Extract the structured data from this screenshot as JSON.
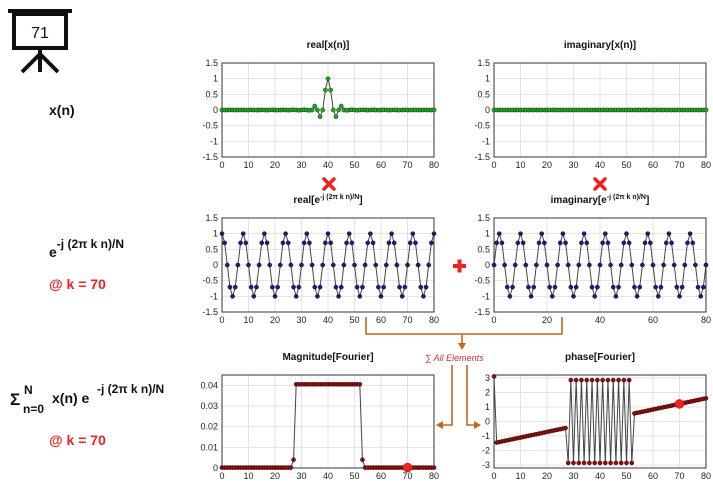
{
  "badge": {
    "number": "71",
    "icon": "presentation-board-icon"
  },
  "left_labels": {
    "xn": "x(n)",
    "kernel_base": "e",
    "kernel_exp": "-j (2π k n)/N",
    "k_note": "@ k = 70",
    "sum_sigma": "Σ",
    "sum_upper": "N",
    "sum_lower": "n=0",
    "sum_body": "x(n) e",
    "sum_exp": "-j (2π k n)/N",
    "k_note2": "@ k = 70"
  },
  "operators": {
    "multiply_icon": "red-x-cross-icon",
    "plus_icon": "red-plus-icon",
    "sum_note": "∑ All Elements"
  },
  "colors": {
    "green": "#22aa22",
    "navy": "#1a1f7a",
    "darkred": "#8b0f0f",
    "accent_red": "#ee2222",
    "orange": "#c8651a",
    "line": "#444444"
  },
  "chart_data": [
    {
      "id": "real_x",
      "type": "line",
      "title": "real[x(n)]",
      "title_sup": "",
      "title_tail": "",
      "xlim": [
        0,
        80
      ],
      "ylim": [
        -1.5,
        1.5
      ],
      "xticks": [
        "0",
        "10",
        "20",
        "30",
        "40",
        "50",
        "60",
        "70",
        "80"
      ],
      "yticks": [
        "1.5",
        "1",
        "0.5",
        "0",
        "-0.5",
        "-1",
        "-1.5"
      ],
      "marker": "green",
      "generator": "sinc"
    },
    {
      "id": "imag_x",
      "type": "line",
      "title": "imaginary[x(n)]",
      "title_sup": "",
      "title_tail": "",
      "xlim": [
        0,
        80
      ],
      "ylim": [
        -1.5,
        1.5
      ],
      "xticks": [
        "0",
        "10",
        "20",
        "30",
        "40",
        "50",
        "60",
        "70",
        "80"
      ],
      "yticks": [
        "1.5",
        "1",
        "0.5",
        "0",
        "-0.5",
        "-1",
        "-1.5"
      ],
      "marker": "green",
      "generator": "zero"
    },
    {
      "id": "real_kernel",
      "type": "line",
      "title": "real[e",
      "title_sup": "-j (2π k n)/N",
      "title_tail": "]",
      "xlim": [
        0,
        80
      ],
      "ylim": [
        -1.5,
        1.5
      ],
      "xticks": [
        "0",
        "10",
        "20",
        "30",
        "40",
        "50",
        "60",
        "70",
        "80"
      ],
      "yticks": [
        "1.5",
        "1",
        "0.5",
        "0",
        "-0.5",
        "-1",
        "-1.5"
      ],
      "marker": "navy",
      "generator": "cos_k70"
    },
    {
      "id": "imag_kernel",
      "type": "line",
      "title": "imaginary[e",
      "title_sup": "-j (2π k n)/N",
      "title_tail": "]",
      "xlim": [
        0,
        80
      ],
      "ylim": [
        -1.5,
        1.5
      ],
      "xticks": [
        "0",
        "20",
        "40",
        "60",
        "80"
      ],
      "yticks": [
        "1.5",
        "1",
        "0.5",
        "0",
        "-0.5",
        "-1",
        "-1.5"
      ],
      "marker": "navy",
      "generator": "sin_k70"
    },
    {
      "id": "magnitude",
      "type": "line",
      "title": "Magnitude[Fourier]",
      "title_sup": "",
      "title_tail": "",
      "xlim": [
        0,
        80
      ],
      "ylim": [
        0,
        0.045
      ],
      "xticks": [
        "0",
        "10",
        "20",
        "30",
        "40",
        "50",
        "60",
        "70",
        "80"
      ],
      "yticks": [
        "0.04",
        "0.03",
        "0.02",
        "0.01",
        "0"
      ],
      "marker": "darkred",
      "generator": "magnitude",
      "highlight_k": 70
    },
    {
      "id": "phase",
      "type": "line",
      "title": "phase[Fourier]",
      "title_sup": "",
      "title_tail": "",
      "xlim": [
        0,
        80
      ],
      "ylim": [
        -3.2,
        3.2
      ],
      "xticks": [
        "0",
        "10",
        "20",
        "30",
        "40",
        "50",
        "60",
        "70",
        "80"
      ],
      "yticks": [
        "3",
        "2",
        "1",
        "0",
        "-1",
        "-2",
        "-3"
      ],
      "marker": "darkred",
      "generator": "phase",
      "highlight_k": 70
    }
  ]
}
